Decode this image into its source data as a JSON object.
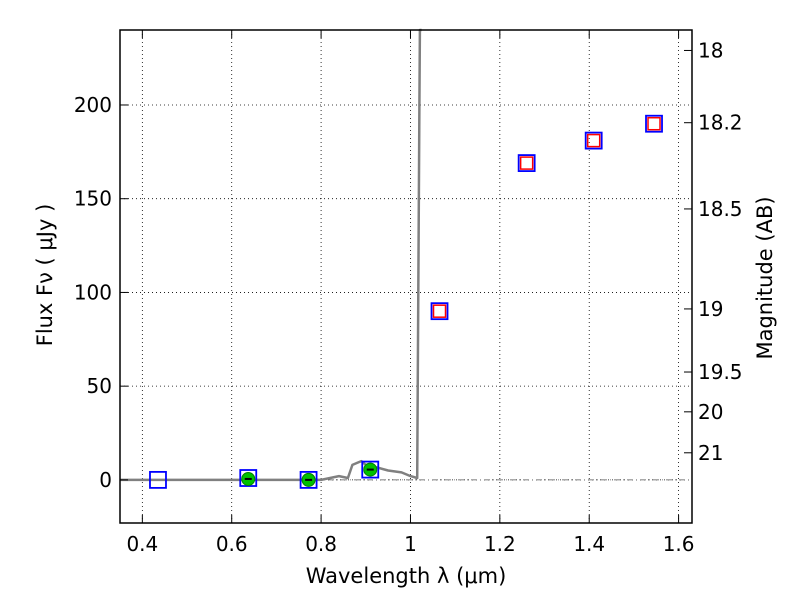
{
  "chart_data": {
    "type": "scatter",
    "xlabel": "Wavelength  λ (μm)",
    "ylabel": "Flux  Fν  ( μJy )",
    "y2label": "Magnitude (AB)",
    "xlim": [
      0.35,
      1.63
    ],
    "ylim": [
      -23,
      240
    ],
    "grid": true,
    "x_ticks": [
      0.4,
      0.6,
      0.8,
      1.0,
      1.2,
      1.4,
      1.6
    ],
    "x_tick_labels": [
      "0.4",
      "0.6",
      "0.8",
      "1",
      "1.2",
      "1.4",
      "1.6"
    ],
    "y_ticks": [
      0,
      50,
      100,
      150,
      200
    ],
    "y_tick_labels": [
      "0",
      "50",
      "100",
      "150",
      "200"
    ],
    "mag_ticks": [
      18,
      18.2,
      18.5,
      19,
      19.5,
      20,
      21
    ],
    "mag_tick_labels": [
      "18",
      "18.2",
      "18.5",
      "19",
      "19.5",
      "20",
      "21"
    ],
    "model_sed": {
      "color": "#808080",
      "x": [
        0.35,
        0.5,
        0.6,
        0.7,
        0.8,
        0.82,
        0.84,
        0.86,
        0.87,
        0.88,
        0.89,
        0.9,
        0.92,
        0.95,
        0.98,
        1.0,
        1.015,
        1.02,
        1.021,
        1.025
      ],
      "y": [
        0,
        0,
        0,
        0,
        0,
        1,
        2,
        1,
        8,
        9,
        10,
        8,
        7,
        5,
        4,
        2,
        1,
        200,
        240,
        245
      ]
    },
    "series": [
      {
        "name": "",
        "marker": "open-square",
        "color": "#0000ff",
        "x": [
          0.435,
          0.637,
          0.772,
          0.91,
          1.065,
          1.26,
          1.41,
          1.545
        ],
        "y": [
          0,
          1,
          0,
          5.5,
          90,
          169,
          181,
          190
        ]
      },
      {
        "name": "",
        "marker": "filled-circle",
        "color": "#00c000",
        "x": [
          0.637,
          0.772,
          0.91
        ],
        "y": [
          0.5,
          0,
          5.5
        ]
      },
      {
        "name": "",
        "marker": "open-square-small",
        "color": "#ff0000",
        "x": [
          1.065,
          1.26,
          1.41,
          1.545
        ],
        "y": [
          90,
          169,
          181,
          190
        ]
      }
    ]
  }
}
